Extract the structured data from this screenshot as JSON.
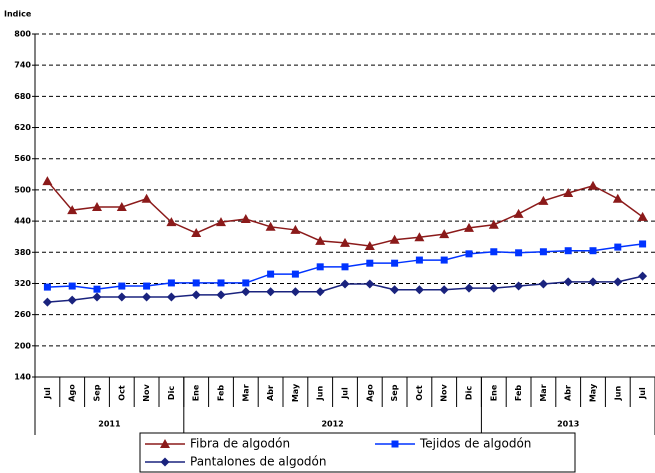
{
  "chart_data": {
    "type": "line",
    "y_axis_label": "Indice",
    "categories": [
      "Jul",
      "Ago",
      "Sep",
      "Oct",
      "Nov",
      "Dic",
      "Ene",
      "Feb",
      "Mar",
      "Abr",
      "May",
      "Jun",
      "Jul",
      "Ago",
      "Sep",
      "Oct",
      "Nov",
      "Dic",
      "Ene",
      "Feb",
      "Mar",
      "Abr",
      "May",
      "Jun",
      "Jul"
    ],
    "groups": [
      {
        "label": "2011",
        "span": 6
      },
      {
        "label": "2012",
        "span": 12
      },
      {
        "label": "2013",
        "span": 7
      }
    ],
    "ylim": [
      140,
      800
    ],
    "yticks": [
      140,
      200,
      260,
      320,
      380,
      440,
      500,
      560,
      620,
      680,
      740,
      800
    ],
    "grid": true,
    "series": [
      {
        "name": "Fibra de algodón",
        "color": "#8b1a1a",
        "marker": "triangle",
        "values": [
          517,
          461,
          467,
          467,
          483,
          438,
          417,
          438,
          444,
          429,
          423,
          402,
          398,
          392,
          404,
          409,
          415,
          427,
          433,
          454,
          479,
          494,
          508,
          483,
          448
        ]
      },
      {
        "name": "Tejidos de algodón",
        "color": "#0033ff",
        "marker": "square",
        "values": [
          313,
          315,
          309,
          315,
          315,
          321,
          321,
          321,
          321,
          338,
          338,
          352,
          352,
          359,
          359,
          365,
          365,
          377,
          381,
          379,
          381,
          383,
          383,
          390,
          396
        ]
      },
      {
        "name": "Pantalones de algodón",
        "color": "#1a237e",
        "marker": "diamond",
        "values": [
          284,
          288,
          294,
          294,
          294,
          294,
          298,
          298,
          304,
          304,
          304,
          304,
          319,
          319,
          308,
          308,
          308,
          311,
          311,
          315,
          319,
          323,
          323,
          323,
          334
        ]
      }
    ]
  }
}
